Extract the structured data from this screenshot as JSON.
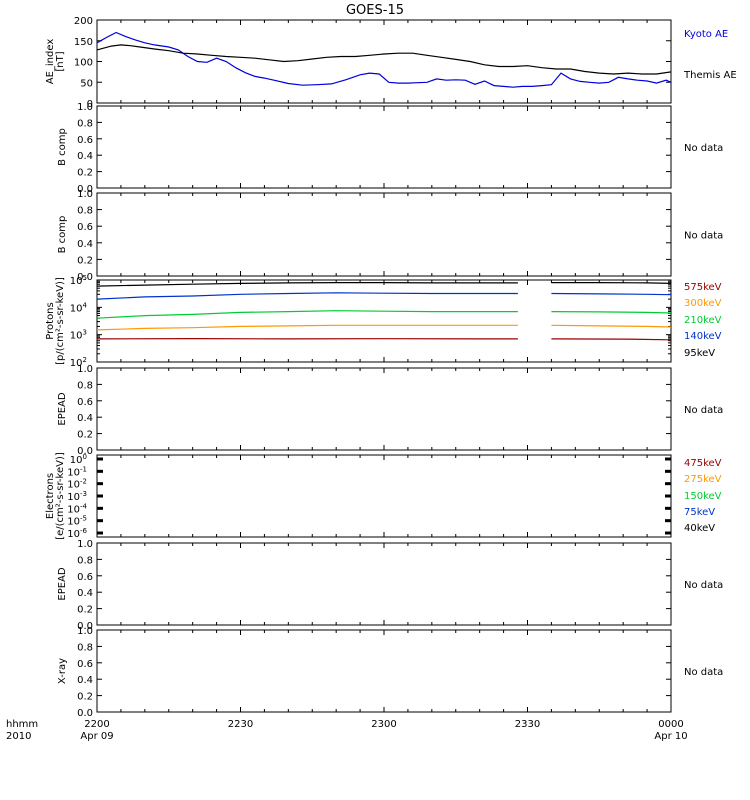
{
  "title": "GOES-15",
  "time_axis": {
    "row_label_1": "hhmm",
    "row_label_2": "2010",
    "ticks": [
      {
        "t": 0,
        "time": "2200",
        "date": "Apr 09"
      },
      {
        "t": 30,
        "time": "2230",
        "date": ""
      },
      {
        "t": 60,
        "time": "2300",
        "date": ""
      },
      {
        "t": 90,
        "time": "2330",
        "date": ""
      },
      {
        "t": 120,
        "time": "0000",
        "date": "Apr 10"
      }
    ],
    "range_minutes": [
      0,
      120
    ]
  },
  "no_data_text": "No data",
  "colors": {
    "kyoto": "#0000dd",
    "themis": "#000000",
    "e575": "#990000",
    "e300": "#ff9900",
    "e210": "#00cc33",
    "e140": "#0033cc",
    "e95": "#000000"
  },
  "chart_data": [
    {
      "type": "line",
      "panel": "ae",
      "ylabel_1": "AE_index",
      "ylabel_2": "[nT]",
      "ylim": [
        0,
        200
      ],
      "yticks": [
        "0",
        "50",
        "100",
        "150",
        "200"
      ],
      "series": [
        {
          "name": "Kyoto AE",
          "color_key": "kyoto",
          "x": [
            0,
            2,
            4,
            6,
            8,
            10,
            12,
            15,
            17,
            19,
            21,
            23,
            25,
            27,
            29,
            31,
            33,
            35,
            37,
            40,
            43,
            46,
            49,
            52,
            55,
            57,
            59,
            61,
            63,
            65,
            67,
            69,
            71,
            73,
            75,
            77,
            79,
            81,
            83,
            85,
            87,
            89,
            91,
            93,
            95,
            97,
            99,
            101,
            103,
            105,
            107,
            109,
            111,
            113,
            115,
            117,
            119,
            120
          ],
          "y": [
            145,
            158,
            170,
            160,
            152,
            145,
            140,
            135,
            128,
            112,
            100,
            98,
            108,
            100,
            85,
            73,
            64,
            60,
            55,
            47,
            43,
            44,
            46,
            56,
            68,
            72,
            70,
            50,
            48,
            48,
            49,
            50,
            58,
            55,
            56,
            55,
            45,
            53,
            42,
            40,
            38,
            40,
            40,
            42,
            44,
            72,
            58,
            52,
            50,
            48,
            50,
            62,
            58,
            55,
            53,
            48,
            55,
            50
          ]
        },
        {
          "name": "Themis AE",
          "color_key": "themis",
          "x": [
            0,
            3,
            5,
            7,
            9,
            12,
            15,
            18,
            21,
            24,
            27,
            30,
            33,
            36,
            39,
            42,
            45,
            48,
            51,
            54,
            57,
            60,
            63,
            66,
            69,
            72,
            75,
            78,
            81,
            84,
            87,
            90,
            93,
            96,
            99,
            102,
            105,
            108,
            111,
            114,
            117,
            120
          ],
          "y": [
            128,
            137,
            140,
            138,
            135,
            130,
            126,
            120,
            118,
            115,
            112,
            110,
            108,
            104,
            100,
            102,
            106,
            110,
            112,
            112,
            115,
            118,
            120,
            120,
            115,
            110,
            105,
            100,
            92,
            88,
            88,
            90,
            85,
            82,
            82,
            76,
            72,
            70,
            72,
            70,
            70,
            75
          ]
        }
      ]
    },
    {
      "type": "line",
      "panel": "bcomp1",
      "ylabel_1": "B comp",
      "ylim": [
        0,
        1
      ],
      "yticks": [
        "0.0",
        "0.2",
        "0.4",
        "0.6",
        "0.8",
        "1.0"
      ],
      "series": [],
      "note": "No data"
    },
    {
      "type": "line",
      "panel": "bcomp2",
      "ylabel_1": "B comp",
      "ylim": [
        0,
        1
      ],
      "yticks": [
        "0.0",
        "0.2",
        "0.4",
        "0.6",
        "0.8",
        "1.0"
      ],
      "series": [],
      "note": "No data"
    },
    {
      "type": "line",
      "panel": "protons",
      "ylabel_1": "Protons",
      "ylabel_2": "[p/(cm²-s-sr-keV)]",
      "log_scale": true,
      "ylim": [
        100,
        100000
      ],
      "ytick_exponents": [
        2,
        3,
        4,
        5
      ],
      "data_gap_minutes": [
        88,
        95
      ],
      "series": [
        {
          "name": "575keV",
          "color_key": "e575",
          "x": [
            0,
            20,
            40,
            60,
            80,
            88,
            95,
            110,
            120
          ],
          "y": [
            700,
            720,
            700,
            710,
            700,
            700,
            700,
            690,
            650
          ]
        },
        {
          "name": "300keV",
          "color_key": "e300",
          "x": [
            0,
            10,
            20,
            30,
            40,
            50,
            60,
            70,
            80,
            88,
            95,
            105,
            115,
            120
          ],
          "y": [
            1500,
            1700,
            1800,
            2000,
            2100,
            2200,
            2200,
            2200,
            2200,
            2200,
            2200,
            2100,
            2000,
            1900
          ]
        },
        {
          "name": "210keV",
          "color_key": "e210",
          "x": [
            0,
            10,
            20,
            30,
            40,
            50,
            60,
            70,
            80,
            88,
            95,
            105,
            115,
            120
          ],
          "y": [
            4000,
            5000,
            5500,
            6500,
            7000,
            7500,
            7200,
            7000,
            7000,
            7000,
            7000,
            6800,
            6500,
            6200
          ]
        },
        {
          "name": "140keV",
          "color_key": "e140",
          "x": [
            0,
            10,
            20,
            30,
            40,
            50,
            60,
            70,
            80,
            88,
            95,
            105,
            115,
            120
          ],
          "y": [
            20000,
            24000,
            26000,
            30000,
            32000,
            34000,
            33000,
            32000,
            32000,
            32000,
            32000,
            31000,
            30000,
            29000
          ]
        },
        {
          "name": "95keV",
          "color_key": "e95",
          "x": [
            0,
            10,
            20,
            30,
            40,
            50,
            60,
            70,
            80,
            88,
            95,
            105,
            115,
            120
          ],
          "y": [
            60000,
            65000,
            70000,
            75000,
            78000,
            80000,
            80000,
            78000,
            78000,
            78000,
            80000,
            80000,
            78000,
            75000
          ]
        }
      ]
    },
    {
      "type": "line",
      "panel": "epead1",
      "ylabel_1": "EPEAD",
      "ylim": [
        0,
        1
      ],
      "yticks": [
        "0.0",
        "0.2",
        "0.4",
        "0.6",
        "0.8",
        "1.0"
      ],
      "series": [],
      "note": "No data"
    },
    {
      "type": "line",
      "panel": "electrons",
      "ylabel_1": "Electrons",
      "ylabel_2": "[e/(cm²-s-sr-keV)]",
      "log_scale": true,
      "ytick_exponents": [
        0,
        -1,
        -2,
        -3,
        -4,
        -5,
        -6
      ],
      "series": [
        {
          "name": "475keV",
          "color_key": "e575"
        },
        {
          "name": "275keV",
          "color_key": "e300"
        },
        {
          "name": "150keV",
          "color_key": "e210"
        },
        {
          "name": "75keV",
          "color_key": "e140"
        },
        {
          "name": "40keV",
          "color_key": "e95"
        }
      ]
    },
    {
      "type": "line",
      "panel": "epead2",
      "ylabel_1": "EPEAD",
      "ylim": [
        0,
        1
      ],
      "yticks": [
        "0.0",
        "0.2",
        "0.4",
        "0.6",
        "0.8",
        "1.0"
      ],
      "series": [],
      "note": "No data"
    },
    {
      "type": "line",
      "panel": "xray",
      "ylabel_1": "X-ray",
      "ylim": [
        0,
        1
      ],
      "yticks": [
        "0.0",
        "0.2",
        "0.4",
        "0.6",
        "0.8",
        "1.0"
      ],
      "series": [],
      "note": "No data"
    }
  ]
}
